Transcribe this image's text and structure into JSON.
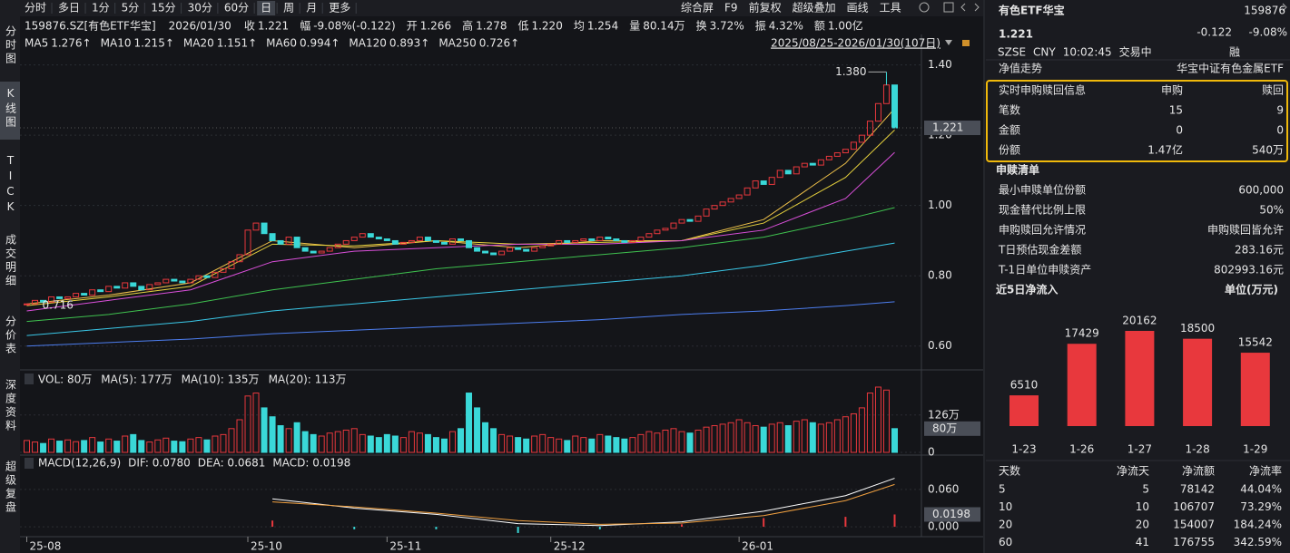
{
  "toolbar": {
    "periods": [
      "分时",
      "多日",
      "1分",
      "5分",
      "15分",
      "30分",
      "60分",
      "日",
      "周",
      "月",
      "更多"
    ],
    "active": 7,
    "tools": [
      "综合屏",
      "F9",
      "前复权",
      "超级叠加",
      "画线",
      "工具"
    ]
  },
  "side_tabs": [
    "分时图",
    "K线图",
    "TICK",
    "成交明细",
    "分价表",
    "深度资料",
    "超级复盘"
  ],
  "side_active": 1,
  "quote": {
    "code": "159876.SZ[有色ETF华宝]",
    "date": "2026/01/30",
    "items": [
      {
        "label": "收",
        "value": "1.221",
        "color": "#2fc16a"
      },
      {
        "label": "幅",
        "value": "-9.08%(-0.122)",
        "color": "#2fc16a"
      },
      {
        "label": "开",
        "value": "1.266",
        "color": "#ff4d4f"
      },
      {
        "label": "高",
        "value": "1.278",
        "color": "#ff4d4f"
      },
      {
        "label": "低",
        "value": "1.220",
        "color": "#2fc16a"
      },
      {
        "label": "均",
        "value": "1.254",
        "color": "#2fc16a"
      },
      {
        "label": "量",
        "value": "80.14万",
        "color": "#e6e6e6"
      },
      {
        "label": "换",
        "value": "3.72%",
        "color": "#e6e6e6"
      },
      {
        "label": "振",
        "value": "4.32%",
        "color": "#e6e6e6"
      },
      {
        "label": "额",
        "value": "1.00亿",
        "color": "#e6e6e6"
      }
    ]
  },
  "kline": {
    "type": "candlestick",
    "date_range": "2025/08/25-2026/01/30(107日)",
    "up_color": "#e8383d",
    "down_color": "#3ad8d8",
    "closes": [
      0.72,
      0.73,
      0.725,
      0.74,
      0.735,
      0.74,
      0.75,
      0.745,
      0.76,
      0.755,
      0.77,
      0.765,
      0.78,
      0.77,
      0.76,
      0.775,
      0.78,
      0.79,
      0.785,
      0.78,
      0.79,
      0.8,
      0.795,
      0.81,
      0.82,
      0.84,
      0.86,
      0.93,
      0.95,
      0.92,
      0.9,
      0.89,
      0.91,
      0.88,
      0.87,
      0.865,
      0.87,
      0.88,
      0.89,
      0.9,
      0.91,
      0.92,
      0.91,
      0.905,
      0.9,
      0.89,
      0.895,
      0.9,
      0.91,
      0.9,
      0.895,
      0.89,
      0.905,
      0.9,
      0.88,
      0.87,
      0.865,
      0.86,
      0.87,
      0.88,
      0.875,
      0.87,
      0.88,
      0.885,
      0.89,
      0.9,
      0.895,
      0.9,
      0.905,
      0.9,
      0.91,
      0.905,
      0.9,
      0.895,
      0.9,
      0.91,
      0.92,
      0.93,
      0.935,
      0.95,
      0.96,
      0.955,
      0.97,
      0.99,
      1.0,
      1.01,
      1.02,
      1.03,
      1.05,
      1.07,
      1.06,
      1.08,
      1.1,
      1.09,
      1.11,
      1.12,
      1.115,
      1.13,
      1.14,
      1.15,
      1.16,
      1.18,
      1.2,
      1.24,
      1.29,
      1.343,
      1.221
    ],
    "xlim": [
      -0.5,
      106.5
    ],
    "xticks": [
      {
        "value": 0,
        "label": "25-08"
      },
      {
        "value": 27,
        "label": "25-10"
      },
      {
        "value": 44,
        "label": "25-11"
      },
      {
        "value": 64,
        "label": "25-12"
      },
      {
        "value": 87,
        "label": "26-01"
      }
    ],
    "ylim": [
      0.54,
      1.43
    ],
    "yticks": [
      {
        "value": 1.4,
        "label": "1.40"
      },
      {
        "value": 1.2,
        "label": "1.20"
      },
      {
        "value": 1.0,
        "label": "1.00"
      },
      {
        "value": 0.8,
        "label": "0.80"
      },
      {
        "value": 0.6,
        "label": "0.60"
      }
    ],
    "high_mark": {
      "value": 1.38,
      "label": "1.380"
    },
    "low_mark": {
      "value": 0.716,
      "label": "0.716"
    },
    "price_tag": {
      "value": 1.221,
      "label": "1.221"
    },
    "ma_x": [
      0,
      10,
      20,
      30,
      40,
      50,
      60,
      70,
      80,
      90,
      100,
      106
    ],
    "ma": [
      {
        "name": "MA5",
        "label": "1.276↑",
        "color": "#f0c24a",
        "values": [
          0.72,
          0.745,
          0.78,
          0.9,
          0.88,
          0.9,
          0.88,
          0.9,
          0.9,
          0.96,
          1.12,
          1.276
        ]
      },
      {
        "name": "MA10",
        "label": "1.215↑",
        "color": "#e6d13d",
        "values": [
          0.715,
          0.74,
          0.77,
          0.89,
          0.885,
          0.9,
          0.89,
          0.895,
          0.9,
          0.95,
          1.08,
          1.215
        ]
      },
      {
        "name": "MA20",
        "label": "1.151↑",
        "color": "#d94fd9",
        "values": [
          0.7,
          0.73,
          0.76,
          0.84,
          0.87,
          0.88,
          0.89,
          0.89,
          0.9,
          0.93,
          1.02,
          1.151
        ]
      },
      {
        "name": "MA60",
        "label": "0.994↑",
        "color": "#3fc24f",
        "values": [
          0.67,
          0.69,
          0.72,
          0.76,
          0.79,
          0.82,
          0.84,
          0.86,
          0.88,
          0.91,
          0.96,
          0.994
        ]
      },
      {
        "name": "MA120",
        "label": "0.893↑",
        "color": "#3ac8e8",
        "values": [
          0.63,
          0.65,
          0.67,
          0.7,
          0.72,
          0.74,
          0.76,
          0.78,
          0.8,
          0.83,
          0.87,
          0.893
        ]
      },
      {
        "name": "MA250",
        "label": "0.726↑",
        "color": "#4d7ef0",
        "values": [
          0.6,
          0.61,
          0.62,
          0.635,
          0.645,
          0.655,
          0.665,
          0.675,
          0.69,
          0.7,
          0.715,
          0.726
        ]
      }
    ]
  },
  "volume": {
    "legend": [
      {
        "text": "VOL: 80万",
        "color": "#e6e6e6"
      },
      {
        "text": "MA(5): 177万",
        "color": "#e6e6e6"
      },
      {
        "text": "MA(10): 135万",
        "color": "#f0a040"
      },
      {
        "text": "MA(20): 113万",
        "color": "#d94fd9"
      }
    ],
    "values": [
      40,
      35,
      30,
      45,
      38,
      42,
      36,
      40,
      50,
      35,
      45,
      38,
      55,
      60,
      40,
      35,
      42,
      48,
      38,
      36,
      45,
      50,
      42,
      55,
      60,
      80,
      110,
      190,
      200,
      150,
      120,
      90,
      80,
      100,
      70,
      60,
      55,
      65,
      70,
      75,
      80,
      60,
      55,
      50,
      60,
      55,
      50,
      70,
      65,
      60,
      50,
      45,
      70,
      80,
      200,
      150,
      100,
      80,
      60,
      55,
      50,
      45,
      55,
      60,
      50,
      45,
      40,
      55,
      50,
      45,
      60,
      55,
      50,
      45,
      50,
      60,
      70,
      65,
      75,
      80,
      70,
      65,
      75,
      85,
      90,
      95,
      100,
      110,
      100,
      90,
      85,
      95,
      100,
      90,
      105,
      110,
      100,
      95,
      100,
      110,
      120,
      130,
      150,
      200,
      220,
      210,
      80
    ],
    "ylim": [
      0,
      220
    ],
    "yticks": [
      0,
      {
        "value": 126,
        "label": "126万"
      }
    ],
    "tag": {
      "value": 80,
      "label": "80万"
    }
  },
  "macd": {
    "legend": [
      {
        "text": "MACD(12,26,9)",
        "color": "#e6e6e6"
      },
      {
        "text": "DIF: 0.0780",
        "color": "#e6e6e6"
      },
      {
        "text": "DEA: 0.0681",
        "color": "#f0a040"
      },
      {
        "text": "MACD: 0.0198",
        "color": "#6fb8ff"
      }
    ],
    "x": [
      30,
      40,
      50,
      60,
      70,
      80,
      90,
      100,
      106
    ],
    "dif": [
      0.045,
      0.03,
      0.02,
      0.005,
      0.002,
      0.008,
      0.025,
      0.05,
      0.078
    ],
    "dea": [
      0.04,
      0.032,
      0.022,
      0.01,
      0.004,
      0.006,
      0.018,
      0.042,
      0.0681
    ],
    "hist": [
      0.01,
      -0.004,
      -0.004,
      -0.01,
      -0.004,
      0.004,
      0.014,
      0.016,
      0.0198
    ],
    "ylim": [
      -0.013,
      0.089
    ],
    "yticks": [
      {
        "value": 0.06,
        "label": "0.060"
      },
      {
        "value": 0,
        "label": "0.000"
      }
    ],
    "tag": {
      "value": 0.0198,
      "label": "0.0198"
    }
  },
  "info": {
    "name": "有色ETF华宝",
    "code": "159876",
    "price": "1.221",
    "change": "-0.122",
    "change_pct": "-9.08%",
    "meta": [
      "SZSE",
      "CNY",
      "10:02:45",
      "交易中"
    ],
    "badge": "融",
    "nav_label": "净值走势",
    "nav_value": "华宝中证有色金属ETF",
    "realtime": {
      "header": [
        "实时申购赎回信息",
        "申购",
        "赎回"
      ],
      "rows": [
        [
          "笔数",
          "15",
          "9"
        ],
        [
          "金额",
          "0",
          "0"
        ],
        [
          "份额",
          "1.47亿",
          "540万"
        ]
      ]
    },
    "list_title": "申赎清单",
    "list": [
      [
        "最小申赎单位份额",
        "600,000"
      ],
      [
        "现金替代比例上限",
        "50%"
      ],
      [
        "申购赎回允许情况",
        "申购赎回皆允许"
      ],
      [
        "T日预估现金差额",
        "283.16元"
      ],
      [
        "T-1日单位申赎资产",
        "802993.16元"
      ]
    ]
  },
  "net_inflow": {
    "type": "bar",
    "title": "近5日净流入",
    "unit": "单位(万元)",
    "categories": [
      "1-23",
      "1-26",
      "1-27",
      "1-28",
      "1-29"
    ],
    "values": [
      6510,
      17429,
      20162,
      18500,
      15542
    ],
    "color": "#e8383d"
  },
  "flow_table": {
    "header": [
      "天数",
      "净流天",
      "净流额",
      "净流率"
    ],
    "rows": [
      [
        "5",
        "5",
        "78142",
        "44.04%"
      ],
      [
        "10",
        "10",
        "106707",
        "73.29%"
      ],
      [
        "20",
        "20",
        "154007",
        "184.24%"
      ],
      [
        "60",
        "41",
        "176755",
        "342.59%"
      ]
    ]
  }
}
